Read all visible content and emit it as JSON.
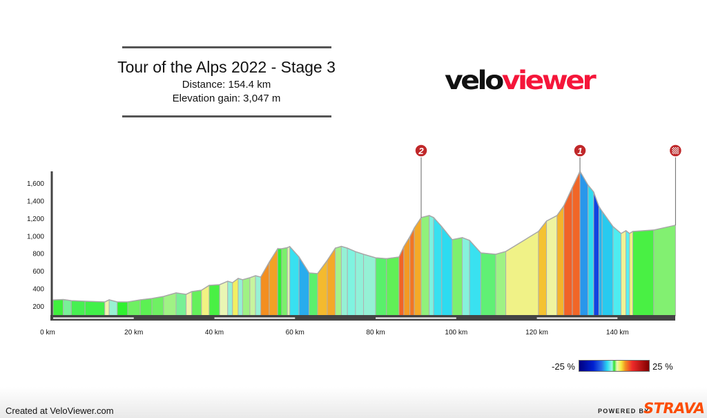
{
  "header": {
    "title": "Tour of the Alps 2022 - Stage 3",
    "distance": "Distance: 154.4 km",
    "elevation_gain": "Elevation gain: 3,047 m",
    "logo_part1": "velo",
    "logo_part2": "viewer",
    "logo_colors": {
      "velo": "#111111",
      "viewer": "#f5163a"
    }
  },
  "chart_data": {
    "type": "area",
    "title": "",
    "xlabel": "",
    "ylabel": "",
    "xlim": [
      0,
      154.4
    ],
    "ylim": [
      80,
      1750
    ],
    "x_unit": "km",
    "grid": false,
    "x_ticks": [
      0,
      20,
      40,
      60,
      80,
      100,
      120,
      140
    ],
    "x_tick_labels": [
      "0 km",
      "20 km",
      "40 km",
      "60 km",
      "80 km",
      "100 km",
      "120 km",
      "140 km"
    ],
    "y_ticks": [
      200,
      400,
      600,
      800,
      1000,
      1200,
      1400,
      1600
    ],
    "y_tick_labels": [
      "200",
      "400",
      "600",
      "800",
      "1,000",
      "1,200",
      "1,400",
      "1,600"
    ],
    "color_by": "gradient %",
    "profile": [
      [
        0,
        270
      ],
      [
        2.5,
        275
      ],
      [
        4.5,
        262
      ],
      [
        7.9,
        255
      ],
      [
        12.8,
        247
      ],
      [
        13.9,
        271
      ],
      [
        15.9,
        247
      ],
      [
        18.5,
        247
      ],
      [
        21.6,
        271
      ],
      [
        24.5,
        287
      ],
      [
        27.4,
        310
      ],
      [
        30.5,
        350
      ],
      [
        33,
        334
      ],
      [
        34.4,
        365
      ],
      [
        36.8,
        381
      ],
      [
        38.7,
        436
      ],
      [
        41.3,
        444
      ],
      [
        43.3,
        483
      ],
      [
        44.5,
        467
      ],
      [
        45.9,
        515
      ],
      [
        47,
        500
      ],
      [
        48.8,
        523
      ],
      [
        50.2,
        546
      ],
      [
        51.5,
        530
      ],
      [
        53.6,
        700
      ],
      [
        55.7,
        853
      ],
      [
        56.7,
        853
      ],
      [
        58.1,
        866
      ],
      [
        58.7,
        877
      ],
      [
        61,
        759
      ],
      [
        63.5,
        578
      ],
      [
        65.6,
        570
      ],
      [
        68,
        720
      ],
      [
        70,
        860
      ],
      [
        71.5,
        880
      ],
      [
        73,
        860
      ],
      [
        75,
        820
      ],
      [
        77,
        790
      ],
      [
        80,
        750
      ],
      [
        82.7,
        740
      ],
      [
        85.8,
        759
      ],
      [
        87,
        877
      ],
      [
        88.5,
        990
      ],
      [
        89.6,
        1090
      ],
      [
        91.3,
        1208
      ],
      [
        93.3,
        1231
      ],
      [
        94.4,
        1208
      ],
      [
        96.4,
        1105
      ],
      [
        99,
        956
      ],
      [
        101.5,
        980
      ],
      [
        103.3,
        948
      ],
      [
        106.1,
        806
      ],
      [
        109.8,
        790
      ],
      [
        112.3,
        822
      ],
      [
        120.4,
        1050
      ],
      [
        122.4,
        1168
      ],
      [
        125,
        1231
      ],
      [
        126.7,
        1342
      ],
      [
        128.8,
        1550
      ],
      [
        130.7,
        1735
      ],
      [
        132.7,
        1578
      ],
      [
        134.1,
        1499
      ],
      [
        135.4,
        1334
      ],
      [
        136.2,
        1278
      ],
      [
        138.9,
        1105
      ],
      [
        140.9,
        1027
      ],
      [
        142.1,
        1058
      ],
      [
        143,
        1027
      ],
      [
        143.8,
        1050
      ],
      [
        149,
        1066
      ],
      [
        154.4,
        1121
      ]
    ],
    "markers": [
      {
        "label": "2",
        "km": 91.3,
        "type": "climb"
      },
      {
        "label": "1",
        "km": 130.7,
        "type": "climb"
      },
      {
        "label": "",
        "km": 154.4,
        "type": "finish",
        "icon": "checkered-flag-icon"
      }
    ],
    "legend": {
      "min_label": "-25 %",
      "max_label": "25 %",
      "min": -25,
      "max": 25
    }
  },
  "footer": {
    "created": "Created at VeloViewer.com",
    "powered_by": "POWERED BY",
    "strava": "STRAVA",
    "strava_color": "#fc4c02"
  }
}
